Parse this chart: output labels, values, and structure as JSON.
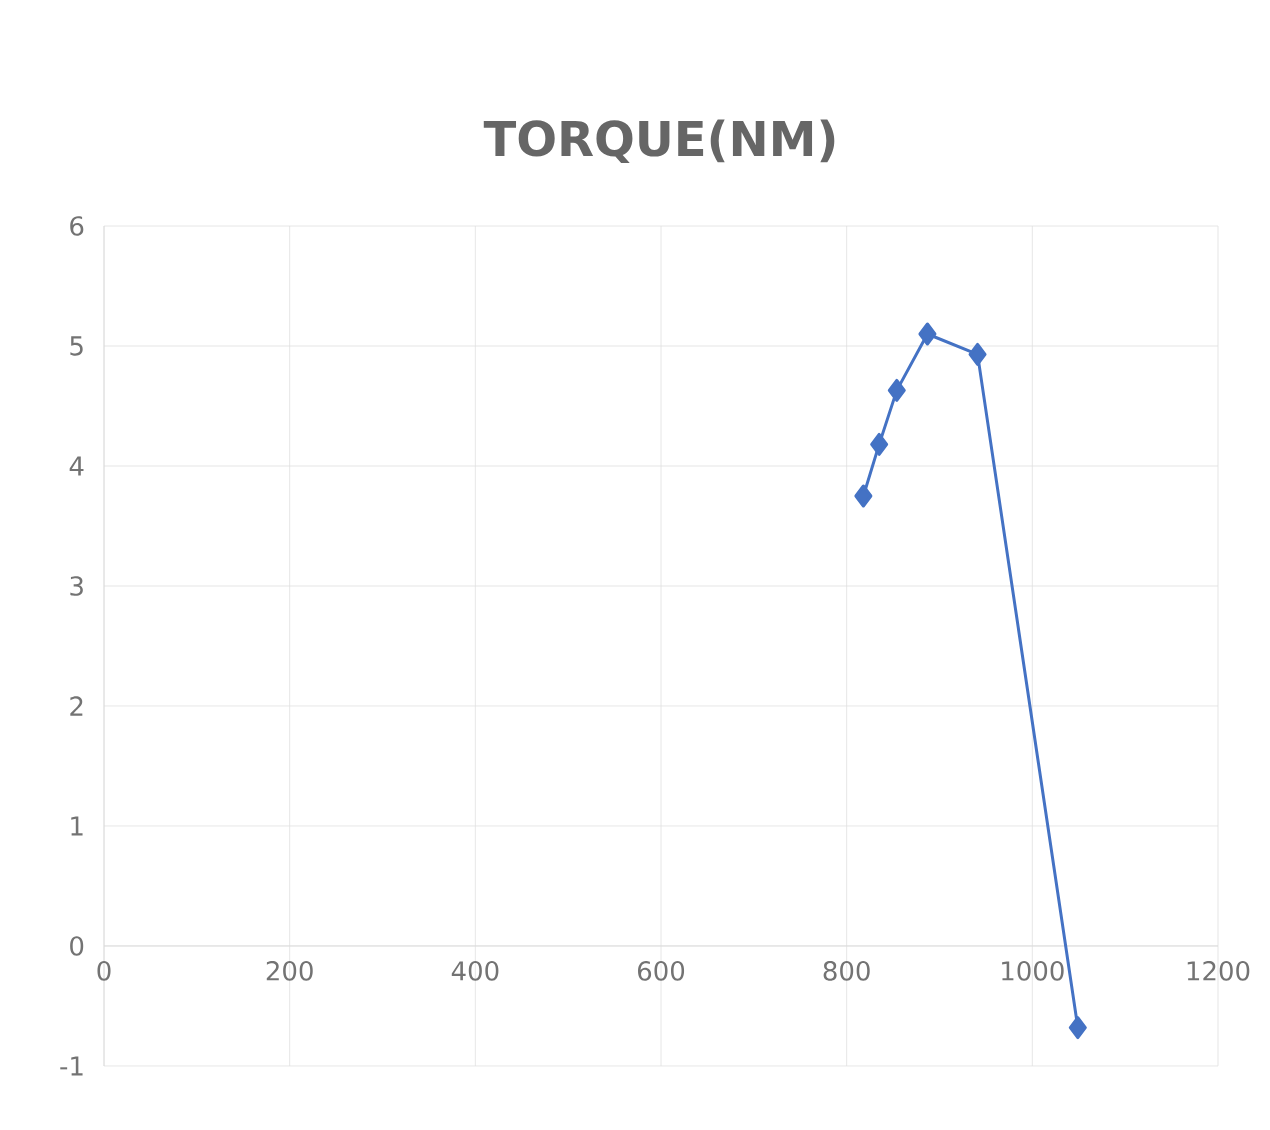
{
  "chart_data": {
    "type": "line",
    "title": "TORQUE(NM)",
    "x": [
      818,
      835,
      854,
      887,
      941,
      1049
    ],
    "values": [
      3.75,
      4.18,
      4.63,
      5.1,
      4.93,
      -0.68
    ],
    "color": "#4472c4",
    "marker": "diamond",
    "line_style": "solid",
    "grid": true,
    "xlim": [
      0,
      1200
    ],
    "xticks": [
      0,
      200,
      400,
      600,
      800,
      1000,
      1200
    ],
    "ylim": [
      -1,
      6
    ],
    "yticks": [
      -1,
      0,
      1,
      2,
      3,
      4,
      5,
      6
    ]
  }
}
